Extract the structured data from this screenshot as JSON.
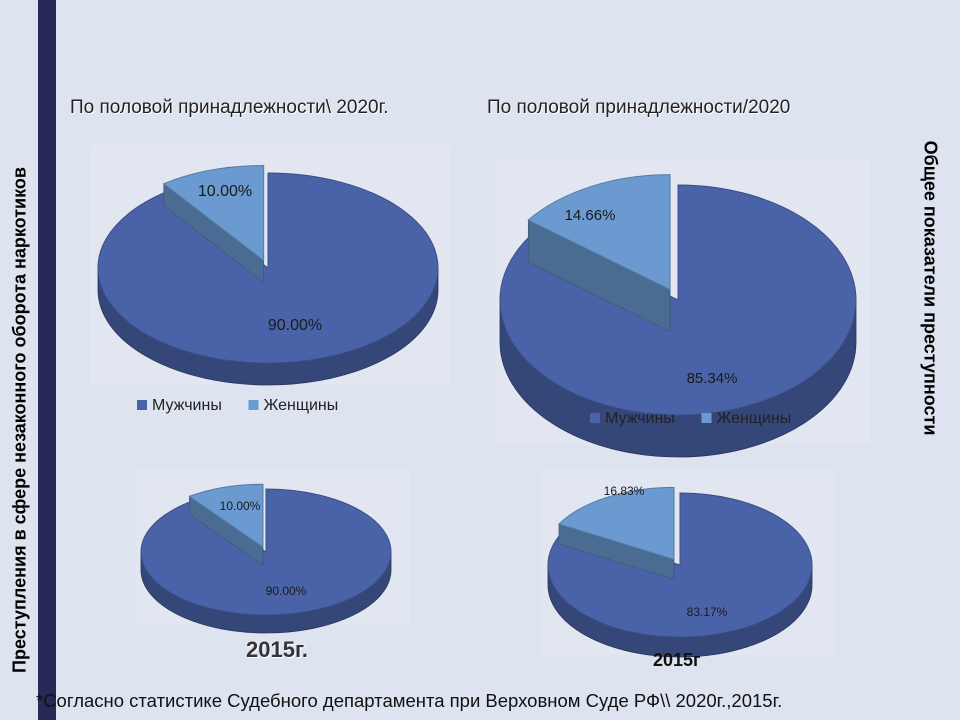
{
  "side_text": {
    "left": "Преступления в сфере незаконного оборота наркотиков",
    "right": "Общее показатели преступности"
  },
  "footnote": "*Согласно статистике Судебного департамента при Верховном Суде РФ\\\\ 2020г.,2015г.",
  "colors": {
    "male": "#4a63a8",
    "female": "#6b9ad0"
  },
  "chart_data": [
    {
      "type": "pie",
      "title": "По половой принадлежности\\ 2020г.",
      "categories": [
        "Мужчины",
        "Женщины"
      ],
      "values": [
        90.0,
        10.0
      ],
      "labels": [
        "90.00%",
        "10.00%"
      ],
      "legend": "bottom"
    },
    {
      "type": "pie",
      "title": "По половой принадлежности/2020",
      "categories": [
        "Мужчины",
        "Женщины"
      ],
      "values": [
        85.34,
        14.66
      ],
      "labels": [
        "85.34%",
        "14.66%"
      ],
      "legend": "bottom"
    },
    {
      "type": "pie",
      "title": "2015г.",
      "categories": [
        "Мужчины",
        "Женщины"
      ],
      "values": [
        90.0,
        10.0
      ],
      "labels": [
        "90.00%",
        "10.00%"
      ]
    },
    {
      "type": "pie",
      "title": "2015г",
      "categories": [
        "Мужчины",
        "Женщины"
      ],
      "values": [
        83.17,
        16.83
      ],
      "labels": [
        "83.17%",
        "16.83%"
      ]
    }
  ]
}
